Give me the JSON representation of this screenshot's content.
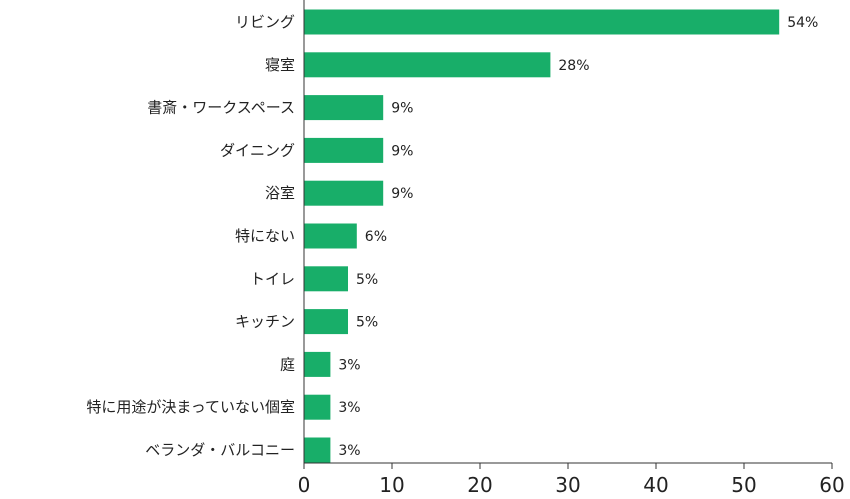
{
  "chart_data": {
    "type": "bar",
    "orientation": "horizontal",
    "categories": [
      "リビング",
      "寝室",
      "書斎・ワークスペース",
      "ダイニング",
      "浴室",
      "特にない",
      "トイレ",
      "キッチン",
      "庭",
      "特に用途が決まっていない個室",
      "ベランダ・バルコニー"
    ],
    "values": [
      54,
      28,
      9,
      9,
      9,
      6,
      5,
      5,
      3,
      3,
      3
    ],
    "value_labels": [
      "54%",
      "28%",
      "9%",
      "9%",
      "9%",
      "6%",
      "5%",
      "5%",
      "3%",
      "3%",
      "3%"
    ],
    "xlim": [
      0,
      60
    ],
    "x_ticks": [
      "0",
      "10",
      "20",
      "30",
      "40",
      "50",
      "60"
    ],
    "title": "",
    "xlabel": "",
    "ylabel": "",
    "grid": false,
    "bar_color": "#18ae69",
    "axis_color": "#333333"
  }
}
